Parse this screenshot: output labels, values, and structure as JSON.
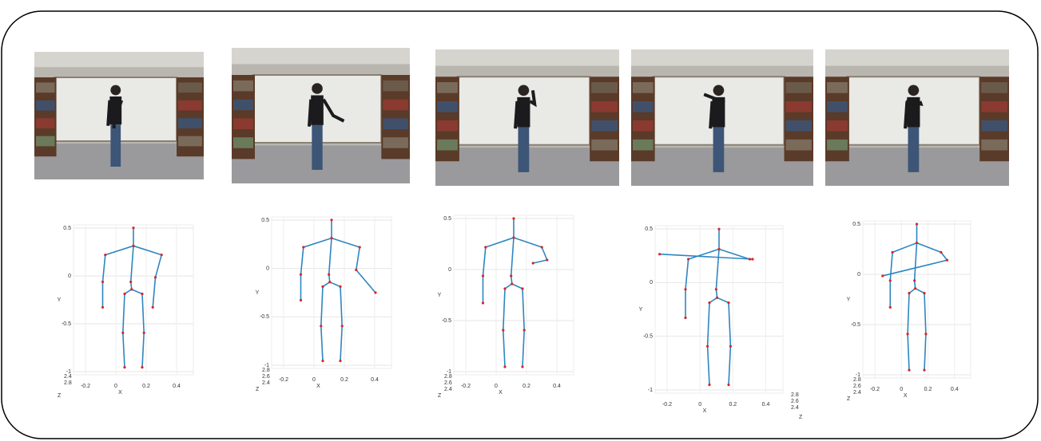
{
  "panels": [
    {
      "yticks": [
        "0.5",
        "0",
        "-0.5",
        "-1"
      ],
      "xticks": [
        "-0.2",
        "0",
        "0.2",
        "0.4"
      ],
      "zticks": [
        "2.4",
        "2.8"
      ],
      "xlabel": "X",
      "ylabel": "Y",
      "zlabel": "Z"
    },
    {
      "yticks": [
        "0.5",
        "0",
        "-0.5",
        "-1"
      ],
      "xticks": [
        "-0.2",
        "0",
        "0.2",
        "0.4"
      ],
      "zticks": [
        "2.8",
        "2.6",
        "2.4"
      ],
      "xlabel": "X",
      "ylabel": "Y",
      "zlabel": "Z"
    },
    {
      "yticks": [
        "0.5",
        "0",
        "-0.5",
        "-1"
      ],
      "xticks": [
        "-0.2",
        "0",
        "0.2",
        "0.4"
      ],
      "zticks": [
        "2.8",
        "2.6",
        "2.4"
      ],
      "xlabel": "X",
      "ylabel": "Y",
      "zlabel": "Z"
    },
    {
      "yticks": [
        "0.5",
        "0",
        "-0.5",
        "-1"
      ],
      "xticks": [
        "-0.2",
        "0",
        "0.2",
        "0.4"
      ],
      "zticks": [
        "2.8",
        "2.6",
        "2.4"
      ],
      "xlabel": "X",
      "ylabel": "Y",
      "zlabel": "Z"
    },
    {
      "yticks": [
        "0.5",
        "0",
        "-0.5",
        "-1"
      ],
      "xticks": [
        "-0.2",
        "0",
        "0.2",
        "0.4"
      ],
      "zticks": [
        "2.8",
        "2.6",
        "2.4"
      ],
      "xlabel": "X",
      "ylabel": "Y",
      "zlabel": "Z"
    }
  ]
}
